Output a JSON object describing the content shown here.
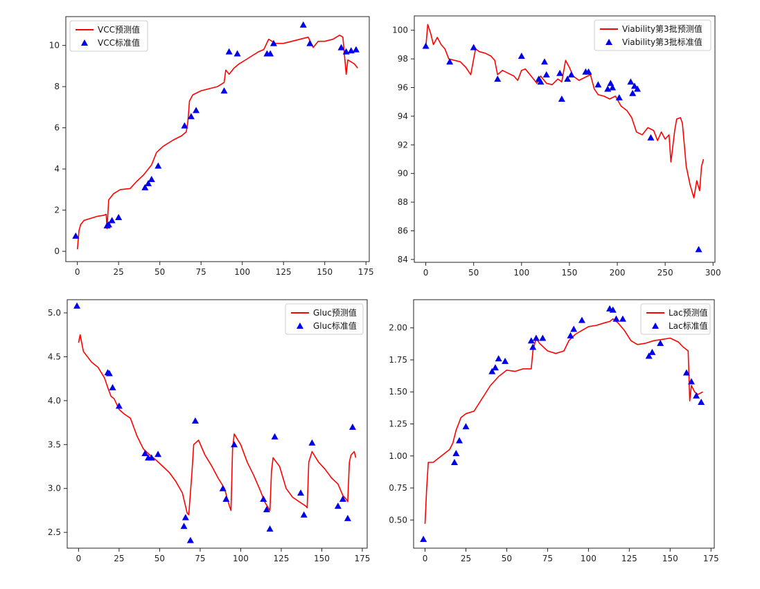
{
  "colors": {
    "line": "#ff0000",
    "marker": "#0000ee",
    "axis": "#222222"
  },
  "chart_data": [
    {
      "type": "line",
      "xlim": [
        -7,
        177
      ],
      "ylim": [
        -0.5,
        11.4
      ],
      "xticks": [
        0,
        25,
        50,
        75,
        100,
        125,
        150,
        175
      ],
      "yticks": [
        0,
        2,
        4,
        6,
        8,
        10
      ],
      "legend": {
        "position": "top-left",
        "line_label": "VCC预测值",
        "marker_label": "VCC标准值"
      },
      "line": [
        [
          0,
          0.1
        ],
        [
          1,
          1.0
        ],
        [
          2,
          1.3
        ],
        [
          4,
          1.5
        ],
        [
          8,
          1.6
        ],
        [
          12,
          1.7
        ],
        [
          16,
          1.75
        ],
        [
          17.5,
          1.8
        ],
        [
          18,
          1.1
        ],
        [
          19,
          2.5
        ],
        [
          22,
          2.8
        ],
        [
          26,
          3.0
        ],
        [
          32,
          3.05
        ],
        [
          36,
          3.4
        ],
        [
          40,
          3.7
        ],
        [
          45,
          4.2
        ],
        [
          48,
          4.8
        ],
        [
          52,
          5.1
        ],
        [
          58,
          5.4
        ],
        [
          63,
          5.6
        ],
        [
          66,
          5.8
        ],
        [
          67,
          6.3
        ],
        [
          68,
          7.3
        ],
        [
          70,
          7.6
        ],
        [
          75,
          7.8
        ],
        [
          80,
          7.9
        ],
        [
          85,
          8.0
        ],
        [
          89,
          8.2
        ],
        [
          90,
          8.8
        ],
        [
          92,
          8.6
        ],
        [
          95,
          8.9
        ],
        [
          98,
          9.1
        ],
        [
          102,
          9.3
        ],
        [
          106,
          9.5
        ],
        [
          110,
          9.7
        ],
        [
          113,
          9.8
        ],
        [
          116,
          10.3
        ],
        [
          120,
          10.1
        ],
        [
          125,
          10.1
        ],
        [
          130,
          10.2
        ],
        [
          135,
          10.3
        ],
        [
          140,
          10.4
        ],
        [
          143,
          9.9
        ],
        [
          146,
          10.2
        ],
        [
          150,
          10.2
        ],
        [
          155,
          10.3
        ],
        [
          159,
          10.5
        ],
        [
          161,
          10.4
        ],
        [
          162,
          9.5
        ],
        [
          163,
          8.6
        ],
        [
          164,
          9.3
        ],
        [
          166,
          9.2
        ],
        [
          168,
          9.1
        ],
        [
          170,
          8.9
        ]
      ],
      "markers": [
        [
          -1,
          0.75
        ],
        [
          18,
          1.25
        ],
        [
          19,
          1.3
        ],
        [
          21,
          1.5
        ],
        [
          25,
          1.65
        ],
        [
          41,
          3.1
        ],
        [
          43,
          3.3
        ],
        [
          45,
          3.5
        ],
        [
          49,
          4.15
        ],
        [
          65,
          6.1
        ],
        [
          69,
          6.55
        ],
        [
          72,
          6.85
        ],
        [
          89,
          7.8
        ],
        [
          92,
          9.7
        ],
        [
          97,
          9.6
        ],
        [
          115,
          9.6
        ],
        [
          117,
          9.6
        ],
        [
          119,
          10.1
        ],
        [
          137,
          11.0
        ],
        [
          141,
          10.1
        ],
        [
          160,
          9.9
        ],
        [
          163,
          9.7
        ],
        [
          166,
          9.75
        ],
        [
          169,
          9.8
        ]
      ]
    },
    {
      "type": "line",
      "xlim": [
        -12,
        302
      ],
      "ylim": [
        83.8,
        101.0
      ],
      "xticks": [
        0,
        50,
        100,
        150,
        200,
        250,
        300
      ],
      "yticks": [
        84,
        86,
        88,
        90,
        92,
        94,
        96,
        98,
        100
      ],
      "legend": {
        "position": "top-right",
        "line_label": "Viability第3批预测值",
        "marker_label": "Viability第3批标准值"
      },
      "line": [
        [
          0,
          98.8
        ],
        [
          2,
          100.4
        ],
        [
          5,
          99.8
        ],
        [
          8,
          99.0
        ],
        [
          12,
          99.5
        ],
        [
          16,
          99.0
        ],
        [
          20,
          98.7
        ],
        [
          24,
          98.0
        ],
        [
          30,
          97.9
        ],
        [
          36,
          97.8
        ],
        [
          42,
          97.4
        ],
        [
          47,
          96.9
        ],
        [
          50,
          98.0
        ],
        [
          52,
          98.7
        ],
        [
          56,
          98.5
        ],
        [
          62,
          98.4
        ],
        [
          68,
          98.2
        ],
        [
          72,
          97.9
        ],
        [
          75,
          96.9
        ],
        [
          80,
          97.2
        ],
        [
          86,
          97.0
        ],
        [
          92,
          96.8
        ],
        [
          96,
          96.5
        ],
        [
          100,
          97.2
        ],
        [
          104,
          97.3
        ],
        [
          110,
          96.8
        ],
        [
          116,
          96.3
        ],
        [
          120,
          96.8
        ],
        [
          126,
          96.3
        ],
        [
          132,
          96.2
        ],
        [
          138,
          96.6
        ],
        [
          142,
          96.4
        ],
        [
          146,
          97.9
        ],
        [
          150,
          97.4
        ],
        [
          154,
          96.8
        ],
        [
          160,
          96.5
        ],
        [
          166,
          96.7
        ],
        [
          172,
          96.9
        ],
        [
          176,
          95.9
        ],
        [
          180,
          95.5
        ],
        [
          186,
          95.4
        ],
        [
          192,
          95.2
        ],
        [
          198,
          95.4
        ],
        [
          204,
          94.7
        ],
        [
          210,
          94.4
        ],
        [
          215,
          93.9
        ],
        [
          220,
          92.9
        ],
        [
          226,
          92.7
        ],
        [
          232,
          93.2
        ],
        [
          238,
          93.0
        ],
        [
          242,
          92.3
        ],
        [
          246,
          92.9
        ],
        [
          250,
          92.4
        ],
        [
          254,
          92.7
        ],
        [
          256,
          90.8
        ],
        [
          260,
          93.0
        ],
        [
          262,
          93.8
        ],
        [
          266,
          93.9
        ],
        [
          268,
          93.5
        ],
        [
          272,
          90.5
        ],
        [
          276,
          89.2
        ],
        [
          280,
          88.3
        ],
        [
          283,
          89.5
        ],
        [
          286,
          88.8
        ],
        [
          288,
          90.5
        ],
        [
          290,
          91.0
        ]
      ],
      "markers": [
        [
          0,
          98.9
        ],
        [
          25,
          97.8
        ],
        [
          50,
          98.8
        ],
        [
          75,
          96.6
        ],
        [
          100,
          98.2
        ],
        [
          118,
          96.6
        ],
        [
          120,
          96.4
        ],
        [
          124,
          97.8
        ],
        [
          126,
          96.9
        ],
        [
          140,
          97.0
        ],
        [
          142,
          95.2
        ],
        [
          148,
          96.6
        ],
        [
          152,
          96.9
        ],
        [
          167,
          97.1
        ],
        [
          170,
          97.1
        ],
        [
          180,
          96.2
        ],
        [
          190,
          95.9
        ],
        [
          193,
          96.3
        ],
        [
          195,
          96.0
        ],
        [
          202,
          95.3
        ],
        [
          214,
          96.4
        ],
        [
          216,
          95.6
        ],
        [
          218,
          96.1
        ],
        [
          221,
          95.9
        ],
        [
          235,
          92.5
        ],
        [
          285,
          84.7
        ]
      ]
    },
    {
      "type": "line",
      "xlim": [
        -7,
        178
      ],
      "ylim": [
        2.32,
        5.15
      ],
      "xticks": [
        0,
        25,
        50,
        75,
        100,
        125,
        150,
        175
      ],
      "yticks": [
        2.5,
        3.0,
        3.5,
        4.0,
        4.5,
        5.0
      ],
      "legend": {
        "position": "top-right",
        "line_label": "Gluc预测值",
        "marker_label": "Gluc标准值"
      },
      "line": [
        [
          0,
          4.66
        ],
        [
          1,
          4.75
        ],
        [
          3,
          4.56
        ],
        [
          8,
          4.44
        ],
        [
          12,
          4.38
        ],
        [
          16,
          4.26
        ],
        [
          18,
          4.15
        ],
        [
          20,
          4.05
        ],
        [
          22,
          4.02
        ],
        [
          25,
          3.9
        ],
        [
          28,
          3.85
        ],
        [
          32,
          3.8
        ],
        [
          36,
          3.6
        ],
        [
          40,
          3.45
        ],
        [
          44,
          3.38
        ],
        [
          48,
          3.32
        ],
        [
          52,
          3.25
        ],
        [
          56,
          3.18
        ],
        [
          60,
          3.08
        ],
        [
          64,
          2.95
        ],
        [
          67,
          2.72
        ],
        [
          68,
          2.7
        ],
        [
          70,
          3.2
        ],
        [
          71,
          3.5
        ],
        [
          74,
          3.55
        ],
        [
          78,
          3.38
        ],
        [
          82,
          3.26
        ],
        [
          86,
          3.12
        ],
        [
          90,
          3.0
        ],
        [
          93,
          2.8
        ],
        [
          94,
          2.75
        ],
        [
          95,
          3.45
        ],
        [
          96,
          3.62
        ],
        [
          100,
          3.5
        ],
        [
          104,
          3.3
        ],
        [
          108,
          3.15
        ],
        [
          112,
          2.98
        ],
        [
          115,
          2.84
        ],
        [
          117,
          2.78
        ],
        [
          118,
          2.75
        ],
        [
          119,
          3.2
        ],
        [
          120,
          3.35
        ],
        [
          124,
          3.25
        ],
        [
          128,
          3.0
        ],
        [
          132,
          2.9
        ],
        [
          136,
          2.85
        ],
        [
          140,
          2.8
        ],
        [
          141,
          2.78
        ],
        [
          142,
          3.3
        ],
        [
          144,
          3.42
        ],
        [
          148,
          3.3
        ],
        [
          152,
          3.22
        ],
        [
          156,
          3.12
        ],
        [
          160,
          3.05
        ],
        [
          163,
          2.92
        ],
        [
          165,
          2.88
        ],
        [
          166,
          2.85
        ],
        [
          167,
          3.3
        ],
        [
          168,
          3.38
        ],
        [
          170,
          3.42
        ],
        [
          171,
          3.35
        ]
      ],
      "markers": [
        [
          -1,
          5.08
        ],
        [
          18,
          4.32
        ],
        [
          19,
          4.31
        ],
        [
          21,
          4.15
        ],
        [
          25,
          3.94
        ],
        [
          41,
          3.4
        ],
        [
          43,
          3.35
        ],
        [
          45,
          3.35
        ],
        [
          49,
          3.39
        ],
        [
          65,
          2.57
        ],
        [
          66,
          2.67
        ],
        [
          69,
          2.41
        ],
        [
          72,
          3.77
        ],
        [
          89,
          3.0
        ],
        [
          91,
          2.88
        ],
        [
          96,
          3.5
        ],
        [
          114,
          2.88
        ],
        [
          116,
          2.76
        ],
        [
          118,
          2.54
        ],
        [
          121,
          3.59
        ],
        [
          137,
          2.95
        ],
        [
          139,
          2.7
        ],
        [
          144,
          3.52
        ],
        [
          160,
          2.8
        ],
        [
          163,
          2.88
        ],
        [
          166,
          2.66
        ],
        [
          169,
          3.7
        ]
      ]
    },
    {
      "type": "line",
      "xlim": [
        -7,
        177
      ],
      "ylim": [
        0.28,
        2.22
      ],
      "xticks": [
        0,
        25,
        50,
        75,
        100,
        125,
        150,
        175
      ],
      "yticks": [
        0.5,
        0.75,
        1.0,
        1.25,
        1.5,
        1.75,
        2.0
      ],
      "legend": {
        "position": "top-right",
        "line_label": "Lac预测值",
        "marker_label": "Lac标准值"
      },
      "line": [
        [
          0,
          0.47
        ],
        [
          1,
          0.75
        ],
        [
          2,
          0.95
        ],
        [
          5,
          0.95
        ],
        [
          10,
          1.0
        ],
        [
          15,
          1.05
        ],
        [
          17,
          1.1
        ],
        [
          19,
          1.2
        ],
        [
          22,
          1.3
        ],
        [
          25,
          1.33
        ],
        [
          30,
          1.35
        ],
        [
          35,
          1.45
        ],
        [
          40,
          1.55
        ],
        [
          45,
          1.62
        ],
        [
          50,
          1.67
        ],
        [
          55,
          1.66
        ],
        [
          60,
          1.68
        ],
        [
          65,
          1.68
        ],
        [
          66,
          1.82
        ],
        [
          68,
          1.92
        ],
        [
          70,
          1.88
        ],
        [
          75,
          1.82
        ],
        [
          80,
          1.8
        ],
        [
          85,
          1.82
        ],
        [
          88,
          1.9
        ],
        [
          92,
          1.95
        ],
        [
          96,
          1.98
        ],
        [
          100,
          2.01
        ],
        [
          105,
          2.02
        ],
        [
          110,
          2.04
        ],
        [
          113,
          2.05
        ],
        [
          115,
          2.07
        ],
        [
          118,
          2.04
        ],
        [
          122,
          1.98
        ],
        [
          126,
          1.9
        ],
        [
          130,
          1.87
        ],
        [
          135,
          1.88
        ],
        [
          140,
          1.9
        ],
        [
          145,
          1.91
        ],
        [
          150,
          1.92
        ],
        [
          155,
          1.89
        ],
        [
          158,
          1.85
        ],
        [
          161,
          1.82
        ],
        [
          162,
          1.43
        ],
        [
          163,
          1.55
        ],
        [
          165,
          1.5
        ],
        [
          167,
          1.48
        ],
        [
          170,
          1.5
        ]
      ],
      "markers": [
        [
          -1,
          0.35
        ],
        [
          18,
          0.95
        ],
        [
          19,
          1.02
        ],
        [
          21,
          1.12
        ],
        [
          25,
          1.23
        ],
        [
          41,
          1.66
        ],
        [
          43,
          1.69
        ],
        [
          45,
          1.76
        ],
        [
          49,
          1.74
        ],
        [
          65,
          1.9
        ],
        [
          66,
          1.85
        ],
        [
          68,
          1.92
        ],
        [
          72,
          1.92
        ],
        [
          89,
          1.94
        ],
        [
          91,
          1.99
        ],
        [
          96,
          2.06
        ],
        [
          113,
          2.15
        ],
        [
          115,
          2.14
        ],
        [
          117,
          2.07
        ],
        [
          121,
          2.07
        ],
        [
          137,
          1.78
        ],
        [
          139,
          1.81
        ],
        [
          144,
          1.88
        ],
        [
          160,
          1.65
        ],
        [
          163,
          1.58
        ],
        [
          166,
          1.47
        ],
        [
          169,
          1.42
        ]
      ]
    }
  ]
}
